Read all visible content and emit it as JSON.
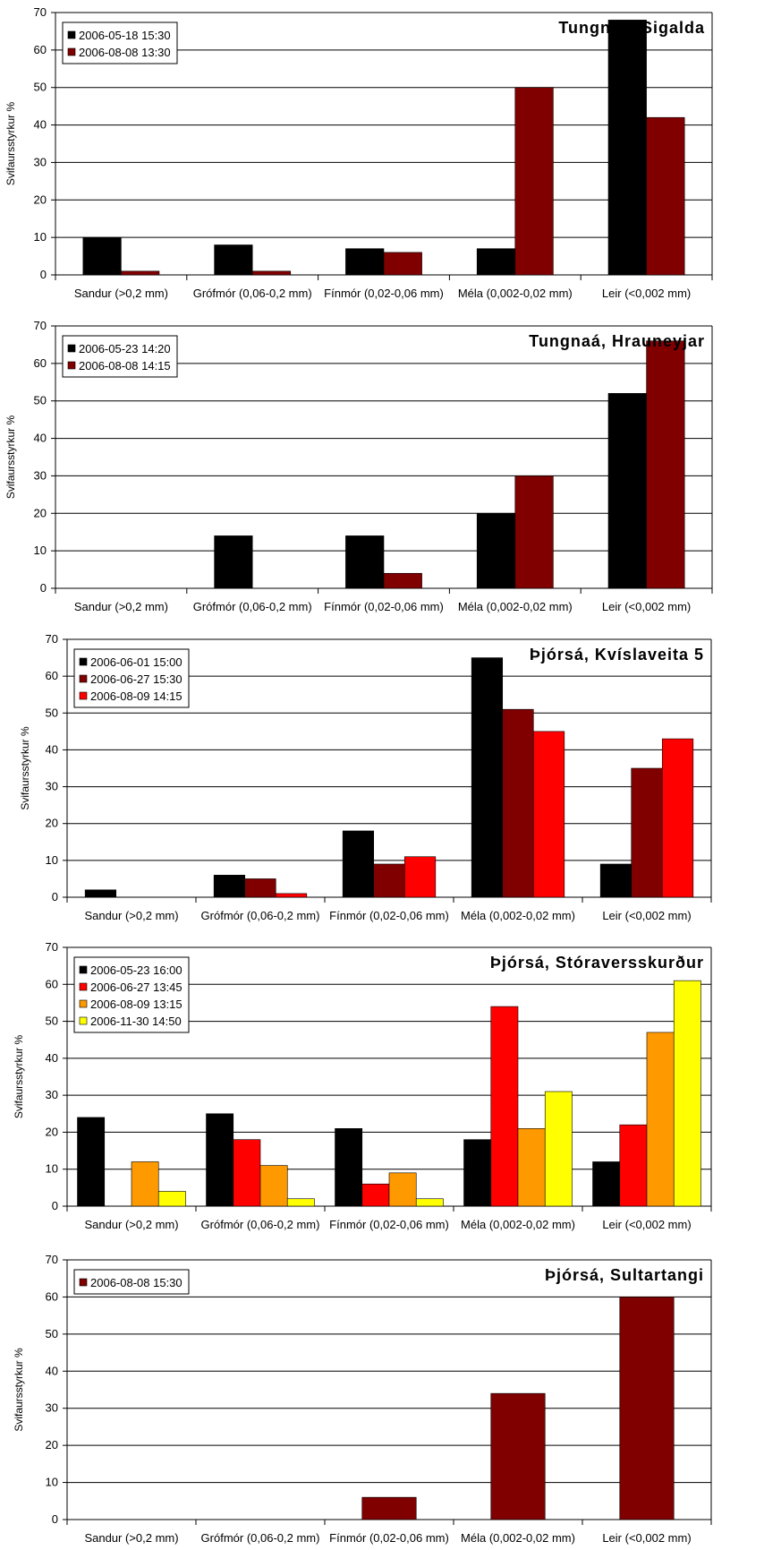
{
  "chart_data": [
    {
      "type": "bar",
      "title": "Tungnaá, Sigalda",
      "ylabel": "Svifaursstyrkur %",
      "xlabel": "",
      "ylim": [
        0,
        70
      ],
      "yticks": [
        0,
        10,
        20,
        30,
        40,
        50,
        60,
        70
      ],
      "grid": true,
      "legend_placement": "top-left",
      "categories": [
        "Sandur (>0,2 mm)",
        "Grófmór (0,06-0,2 mm)",
        "Fínmór (0,02-0,06 mm)",
        "Méla (0,002-0,02 mm)",
        "Leir (<0,002 mm)"
      ],
      "series": [
        {
          "name": "2006-05-18 15:30",
          "color": "#000000",
          "values": [
            10,
            8,
            7,
            7,
            68
          ]
        },
        {
          "name": "2006-08-08 13:30",
          "color": "#800000",
          "values": [
            1,
            1,
            6,
            50,
            42
          ]
        }
      ]
    },
    {
      "type": "bar",
      "title": "Tungnaá, Hrauneyjar",
      "ylabel": "Svifaursstyrkur %",
      "xlabel": "",
      "ylim": [
        0,
        70
      ],
      "yticks": [
        0,
        10,
        20,
        30,
        40,
        50,
        60,
        70
      ],
      "grid": true,
      "legend_placement": "top-left",
      "categories": [
        "Sandur (>0,2 mm)",
        "Grófmór (0,06-0,2 mm)",
        "Fínmór (0,02-0,06 mm)",
        "Méla (0,002-0,02 mm)",
        "Leir (<0,002 mm)"
      ],
      "series": [
        {
          "name": "2006-05-23 14:20",
          "color": "#000000",
          "values": [
            0,
            14,
            14,
            20,
            52
          ]
        },
        {
          "name": "2006-08-08 14:15",
          "color": "#800000",
          "values": [
            0,
            0,
            4,
            30,
            66
          ]
        }
      ]
    },
    {
      "type": "bar",
      "title": "Þjórsá, Kvíslaveita 5",
      "ylabel": "Svifaursstyrkur %",
      "xlabel": "",
      "ylim": [
        0,
        70
      ],
      "yticks": [
        0,
        10,
        20,
        30,
        40,
        50,
        60,
        70
      ],
      "grid": true,
      "legend_placement": "top-left",
      "categories": [
        "Sandur (>0,2 mm)",
        "Grófmór (0,06-0,2 mm)",
        "Fínmór (0,02-0,06 mm)",
        "Méla (0,002-0,02 mm)",
        "Leir (<0,002 mm)"
      ],
      "series": [
        {
          "name": "2006-06-01 15:00",
          "color": "#000000",
          "values": [
            2,
            6,
            18,
            65,
            9
          ]
        },
        {
          "name": "2006-06-27 15:30",
          "color": "#800000",
          "values": [
            0,
            5,
            9,
            51,
            35
          ]
        },
        {
          "name": "2006-08-09 14:15",
          "color": "#ff0000",
          "values": [
            0,
            1,
            11,
            45,
            43
          ]
        }
      ]
    },
    {
      "type": "bar",
      "title": "Þjórsá, Stóraversskurður",
      "ylabel": "Svifaursstyrkur %",
      "xlabel": "",
      "ylim": [
        0,
        70
      ],
      "yticks": [
        0,
        10,
        20,
        30,
        40,
        50,
        60,
        70
      ],
      "grid": true,
      "legend_placement": "top-left",
      "categories": [
        "Sandur (>0,2 mm)",
        "Grófmór (0,06-0,2 mm)",
        "Fínmór (0,02-0,06 mm)",
        "Méla (0,002-0,02 mm)",
        "Leir (<0,002 mm)"
      ],
      "series": [
        {
          "name": "2006-05-23 16:00",
          "color": "#000000",
          "values": [
            24,
            25,
            21,
            18,
            12
          ]
        },
        {
          "name": "2006-06-27 13:45",
          "color": "#ff0000",
          "values": [
            0,
            18,
            6,
            54,
            22
          ]
        },
        {
          "name": "2006-08-09 13:15",
          "color": "#ff9900",
          "values": [
            12,
            11,
            9,
            21,
            47
          ]
        },
        {
          "name": "2006-11-30 14:50",
          "color": "#ffff00",
          "values": [
            4,
            2,
            2,
            31,
            61
          ]
        }
      ]
    },
    {
      "type": "bar",
      "title": "Þjórsá, Sultartangi",
      "ylabel": "Svifaursstyrkur %",
      "xlabel": "",
      "ylim": [
        0,
        70
      ],
      "yticks": [
        0,
        10,
        20,
        30,
        40,
        50,
        60,
        70
      ],
      "grid": true,
      "legend_placement": "top-left",
      "categories": [
        "Sandur (>0,2 mm)",
        "Grófmór (0,06-0,2 mm)",
        "Fínmór (0,02-0,06 mm)",
        "Méla (0,002-0,02 mm)",
        "Leir (<0,002 mm)"
      ],
      "series": [
        {
          "name": "2006-08-08 15:30",
          "color": "#800000",
          "values": [
            0,
            0,
            6,
            34,
            60
          ]
        }
      ]
    }
  ]
}
